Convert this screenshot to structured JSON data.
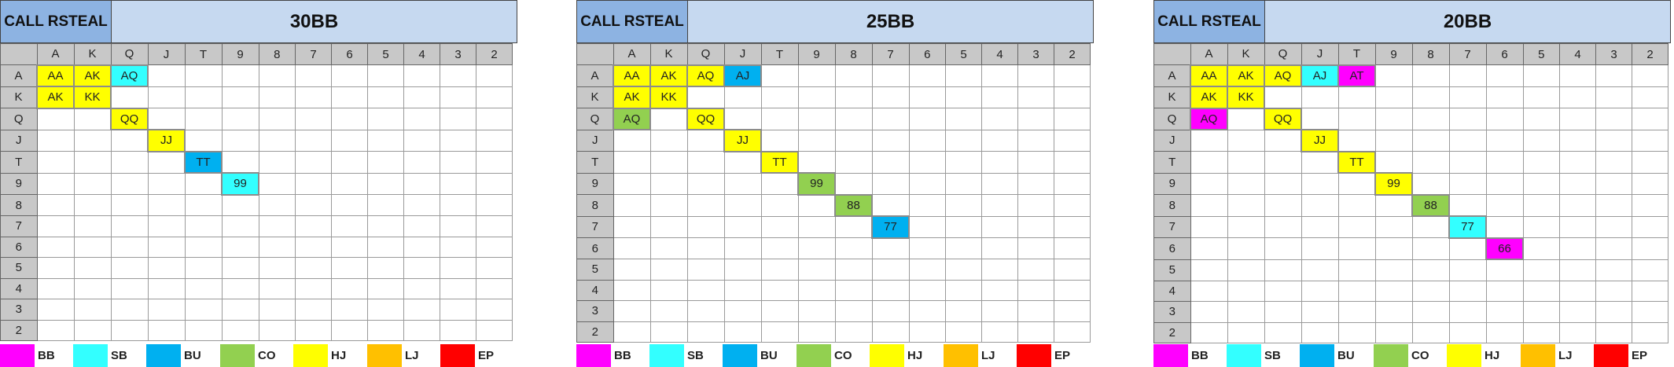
{
  "colors": {
    "BB": "#ff00ff",
    "SB": "#33ffff",
    "BU": "#00b0f0",
    "CO": "#92d050",
    "HJ": "#ffff00",
    "LJ": "#ffc000",
    "EP": "#ff0000"
  },
  "ranks": [
    "A",
    "K",
    "Q",
    "J",
    "T",
    "9",
    "8",
    "7",
    "6",
    "5",
    "4",
    "3",
    "2"
  ],
  "legend": [
    "BB",
    "SB",
    "BU",
    "CO",
    "HJ",
    "LJ",
    "EP"
  ],
  "panels": [
    {
      "left_title": "CALL RSTEAL",
      "title": "30BB",
      "cells": [
        {
          "r": 0,
          "c": 0,
          "text": "AA",
          "pos": "HJ"
        },
        {
          "r": 0,
          "c": 1,
          "text": "AK",
          "pos": "HJ"
        },
        {
          "r": 0,
          "c": 2,
          "text": "AQ",
          "pos": "SB"
        },
        {
          "r": 1,
          "c": 0,
          "text": "AK",
          "pos": "HJ"
        },
        {
          "r": 1,
          "c": 1,
          "text": "KK",
          "pos": "HJ"
        },
        {
          "r": 2,
          "c": 2,
          "text": "QQ",
          "pos": "HJ"
        },
        {
          "r": 3,
          "c": 3,
          "text": "JJ",
          "pos": "HJ"
        },
        {
          "r": 4,
          "c": 4,
          "text": "TT",
          "pos": "BU"
        },
        {
          "r": 5,
          "c": 5,
          "text": "99",
          "pos": "SB"
        }
      ]
    },
    {
      "left_title": "CALL RSTEAL",
      "title": "25BB",
      "cells": [
        {
          "r": 0,
          "c": 0,
          "text": "AA",
          "pos": "HJ"
        },
        {
          "r": 0,
          "c": 1,
          "text": "AK",
          "pos": "HJ"
        },
        {
          "r": 0,
          "c": 2,
          "text": "AQ",
          "pos": "HJ"
        },
        {
          "r": 0,
          "c": 3,
          "text": "AJ",
          "pos": "BU"
        },
        {
          "r": 1,
          "c": 0,
          "text": "AK",
          "pos": "HJ"
        },
        {
          "r": 1,
          "c": 1,
          "text": "KK",
          "pos": "HJ"
        },
        {
          "r": 2,
          "c": 0,
          "text": "AQ",
          "pos": "CO"
        },
        {
          "r": 2,
          "c": 2,
          "text": "QQ",
          "pos": "HJ"
        },
        {
          "r": 3,
          "c": 3,
          "text": "JJ",
          "pos": "HJ"
        },
        {
          "r": 4,
          "c": 4,
          "text": "TT",
          "pos": "HJ"
        },
        {
          "r": 5,
          "c": 5,
          "text": "99",
          "pos": "CO"
        },
        {
          "r": 6,
          "c": 6,
          "text": "88",
          "pos": "CO"
        },
        {
          "r": 7,
          "c": 7,
          "text": "77",
          "pos": "BU"
        }
      ]
    },
    {
      "left_title": "CALL RSTEAL",
      "title": "20BB",
      "cells": [
        {
          "r": 0,
          "c": 0,
          "text": "AA",
          "pos": "HJ"
        },
        {
          "r": 0,
          "c": 1,
          "text": "AK",
          "pos": "HJ"
        },
        {
          "r": 0,
          "c": 2,
          "text": "AQ",
          "pos": "HJ"
        },
        {
          "r": 0,
          "c": 3,
          "text": "AJ",
          "pos": "SB"
        },
        {
          "r": 0,
          "c": 4,
          "text": "AT",
          "pos": "BB"
        },
        {
          "r": 1,
          "c": 0,
          "text": "AK",
          "pos": "HJ"
        },
        {
          "r": 1,
          "c": 1,
          "text": "KK",
          "pos": "HJ"
        },
        {
          "r": 2,
          "c": 0,
          "text": "AQ",
          "pos": "BB"
        },
        {
          "r": 2,
          "c": 2,
          "text": "QQ",
          "pos": "HJ"
        },
        {
          "r": 3,
          "c": 3,
          "text": "JJ",
          "pos": "HJ"
        },
        {
          "r": 4,
          "c": 4,
          "text": "TT",
          "pos": "HJ"
        },
        {
          "r": 5,
          "c": 5,
          "text": "99",
          "pos": "HJ"
        },
        {
          "r": 6,
          "c": 6,
          "text": "88",
          "pos": "CO"
        },
        {
          "r": 7,
          "c": 7,
          "text": "77",
          "pos": "SB"
        },
        {
          "r": 8,
          "c": 8,
          "text": "66",
          "pos": "BB"
        }
      ]
    }
  ]
}
